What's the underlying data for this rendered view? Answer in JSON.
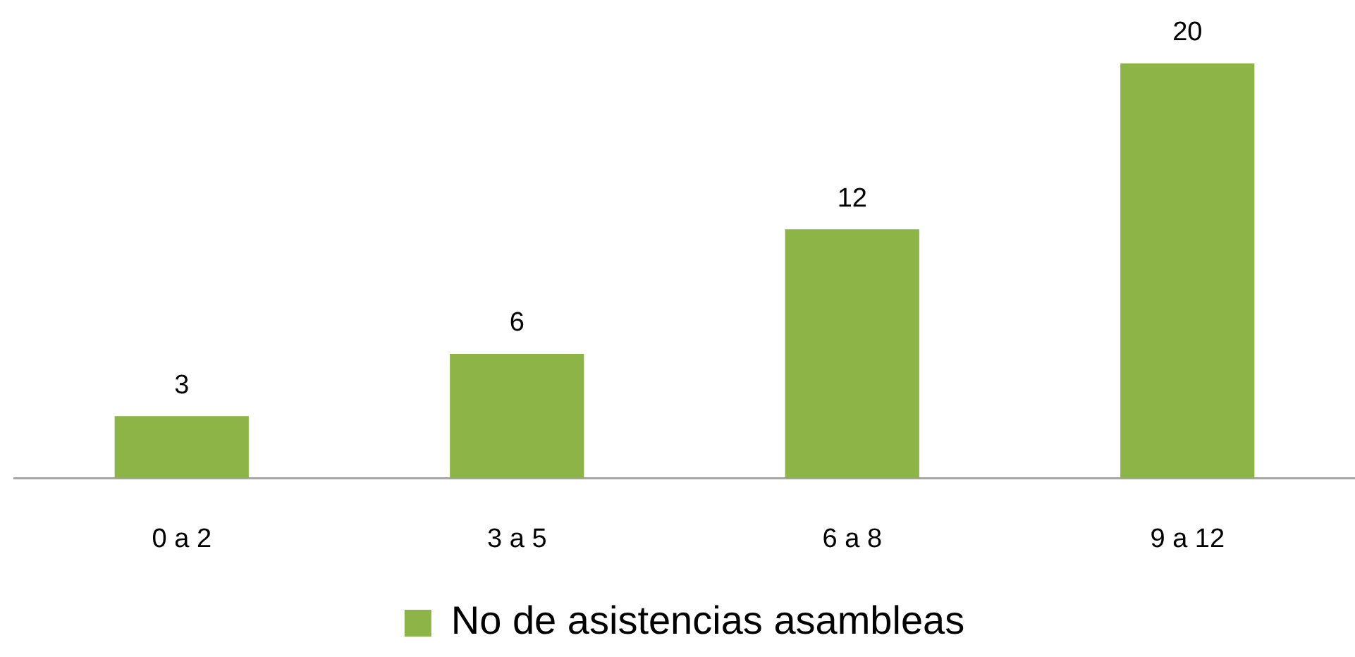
{
  "chart_data": {
    "type": "bar",
    "categories": [
      "0 a 2",
      "3 a 5",
      "6 a 8",
      "9 a 12"
    ],
    "series": [
      {
        "name": "No de asistencias asambleas",
        "color": "#8cb446",
        "values": [
          3,
          6,
          12,
          20
        ]
      }
    ],
    "data_labels": true,
    "legend": "bottom",
    "tick_labels": "x",
    "grid": false
  }
}
